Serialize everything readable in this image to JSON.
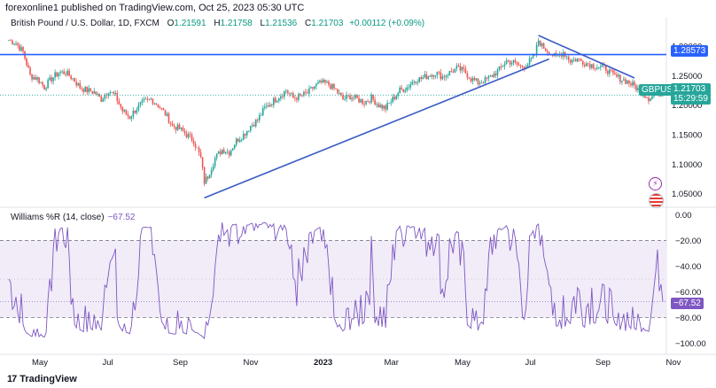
{
  "header": {
    "text": "forexonline1 published on TradingView.com, Oct 25, 2023 05:30 UTC"
  },
  "legend": {
    "symbol": "British Pound / U.S. Dollar, 1D, FXCM",
    "o_label": "O",
    "o_value": "1.21591",
    "h_label": "H",
    "h_value": "1.21758",
    "l_label": "L",
    "l_value": "1.21536",
    "c_label": "C",
    "c_value": "1.21703",
    "change": "+0.00112 (+0.09%)"
  },
  "tags": {
    "level_value": "1.28573",
    "symbol_tag": "GBPUSD",
    "price_value": "1.21703",
    "countdown": "15:29:59",
    "williams_value": "−67.52"
  },
  "williams_legend": {
    "name": "Williams %R (14, close)",
    "value": "−67.52"
  },
  "footer": {
    "brand": "TradingView"
  },
  "colors": {
    "up": "#26a69a",
    "down": "#ef5350",
    "line": "#2962ff",
    "wr": "#7e57c2",
    "band": "#ede7f6"
  },
  "chart_data": [
    {
      "type": "candlestick",
      "title": "British Pound / U.S. Dollar, 1D, FXCM",
      "x_ticks": [
        "May",
        "Jul",
        "Sep",
        "Nov",
        "2023",
        "Mar",
        "May",
        "Jul",
        "Sep",
        "Nov"
      ],
      "y_ticks": [
        "1.30000",
        "1.25000",
        "1.20000",
        "1.15000",
        "1.10000",
        "1.05000"
      ],
      "ylim": [
        1.03,
        1.33
      ],
      "close_path": [
        [
          0,
          1.31
        ],
        [
          4,
          1.305
        ],
        [
          8,
          1.29
        ],
        [
          12,
          1.25
        ],
        [
          16,
          1.245
        ],
        [
          20,
          1.23
        ],
        [
          24,
          1.245
        ],
        [
          28,
          1.255
        ],
        [
          32,
          1.255
        ],
        [
          36,
          1.245
        ],
        [
          40,
          1.23
        ],
        [
          44,
          1.225
        ],
        [
          48,
          1.222
        ],
        [
          52,
          1.21
        ],
        [
          56,
          1.225
        ],
        [
          60,
          1.215
        ],
        [
          64,
          1.19
        ],
        [
          68,
          1.18
        ],
        [
          72,
          1.195
        ],
        [
          76,
          1.205
        ],
        [
          80,
          1.21
        ],
        [
          84,
          1.2
        ],
        [
          88,
          1.185
        ],
        [
          92,
          1.165
        ],
        [
          96,
          1.16
        ],
        [
          100,
          1.15
        ],
        [
          104,
          1.14
        ],
        [
          108,
          1.11
        ],
        [
          110,
          1.07
        ],
        [
          112,
          1.08
        ],
        [
          116,
          1.11
        ],
        [
          120,
          1.125
        ],
        [
          124,
          1.12
        ],
        [
          128,
          1.14
        ],
        [
          132,
          1.15
        ],
        [
          136,
          1.165
        ],
        [
          140,
          1.175
        ],
        [
          144,
          1.195
        ],
        [
          148,
          1.205
        ],
        [
          152,
          1.215
        ],
        [
          156,
          1.225
        ],
        [
          160,
          1.212
        ],
        [
          164,
          1.215
        ],
        [
          168,
          1.22
        ],
        [
          172,
          1.232
        ],
        [
          176,
          1.238
        ],
        [
          180,
          1.235
        ],
        [
          184,
          1.225
        ],
        [
          188,
          1.21
        ],
        [
          192,
          1.215
        ],
        [
          196,
          1.21
        ],
        [
          200,
          1.205
        ],
        [
          204,
          1.212
        ],
        [
          208,
          1.2
        ],
        [
          212,
          1.195
        ],
        [
          216,
          1.21
        ],
        [
          220,
          1.225
        ],
        [
          224,
          1.23
        ],
        [
          228,
          1.242
        ],
        [
          232,
          1.245
        ],
        [
          236,
          1.25
        ],
        [
          240,
          1.255
        ],
        [
          244,
          1.248
        ],
        [
          248,
          1.255
        ],
        [
          252,
          1.262
        ],
        [
          256,
          1.258
        ],
        [
          260,
          1.245
        ],
        [
          264,
          1.238
        ],
        [
          268,
          1.242
        ],
        [
          272,
          1.25
        ],
        [
          276,
          1.26
        ],
        [
          280,
          1.275
        ],
        [
          284,
          1.272
        ],
        [
          288,
          1.265
        ],
        [
          292,
          1.27
        ],
        [
          296,
          1.285
        ],
        [
          298,
          1.31
        ],
        [
          300,
          1.3
        ],
        [
          304,
          1.29
        ],
        [
          308,
          1.28
        ],
        [
          312,
          1.29
        ],
        [
          316,
          1.275
        ],
        [
          320,
          1.278
        ],
        [
          324,
          1.272
        ],
        [
          328,
          1.268
        ],
        [
          332,
          1.265
        ],
        [
          336,
          1.262
        ],
        [
          340,
          1.25
        ],
        [
          344,
          1.245
        ],
        [
          348,
          1.24
        ],
        [
          352,
          1.232
        ],
        [
          356,
          1.222
        ],
        [
          360,
          1.212
        ],
        [
          362,
          1.215
        ],
        [
          364,
          1.225
        ],
        [
          366,
          1.22
        ],
        [
          368,
          1.217
        ]
      ],
      "horizontal_line": 1.28573,
      "last_price": 1.21703,
      "trendlines": [
        {
          "from": [
            110,
            1.043
          ],
          "to": [
            304,
            1.278
          ]
        },
        {
          "from": [
            298,
            1.318
          ],
          "to": [
            352,
            1.246
          ]
        }
      ]
    },
    {
      "type": "line",
      "title": "Williams %R (14, close)",
      "y_ticks": [
        "0.00",
        "−20.00",
        "−40.00",
        "−60.00",
        "−80.00",
        "−100.00"
      ],
      "ylim": [
        -105,
        3
      ],
      "bands": [
        -20,
        -80
      ],
      "last_value": -67.52
    }
  ]
}
